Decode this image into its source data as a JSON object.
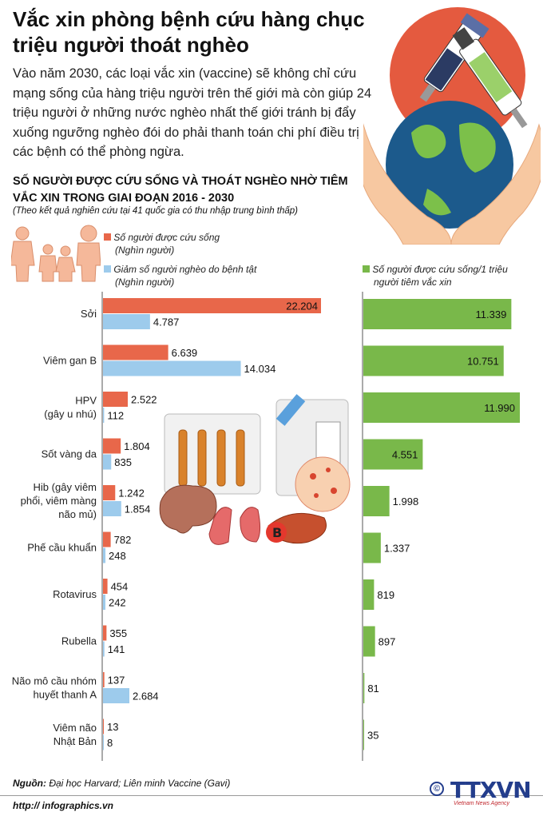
{
  "header": {
    "title": "Vắc xin phòng bệnh cứu hàng chục triệu người thoát nghèo",
    "intro": "Vào năm 2030, các loại vắc xin (vaccine) sẽ không chỉ cứu mạng sống của hàng triệu người trên thế giới mà còn giúp 24 triệu người ở những nước nghèo nhất thế giới tránh bị đẩy xuống ngưỡng nghèo đói do phải thanh toán chi phí điều trị các bệnh có thể phòng ngừa."
  },
  "colors": {
    "saved": "#e8674a",
    "poverty": "#9dcbec",
    "per_million": "#79b84a",
    "dark_label_bg": "#ffffff"
  },
  "chart_data": {
    "type": "bar",
    "title": "SỐ NGƯỜI ĐƯỢC CỨU SỐNG VÀ THOÁT NGHÈO NHỜ TIÊM VẮC XIN TRONG GIAI ĐOẠN 2016 - 2030",
    "subtitle": "(Theo kết quả nghiên cứu tại 41 quốc gia có thu nhập trung bình thấp)",
    "categories": [
      "Sởi",
      "Viêm gan B",
      "HPV (gây u nhú)",
      "Sốt vàng da",
      "Hib (gây viêm phổi, viêm màng não mủ)",
      "Phế cầu khuẩn",
      "Rotavirus",
      "Rubella",
      "Não mô cầu nhóm huyết thanh A",
      "Viêm não Nhật Bản"
    ],
    "category_lines": [
      [
        "Sởi"
      ],
      [
        "Viêm gan B"
      ],
      [
        "HPV",
        "(gây u nhú)"
      ],
      [
        "Sốt vàng da"
      ],
      [
        "Hib (gây viêm",
        "phổi, viêm màng",
        "não mủ)"
      ],
      [
        "Phế cầu khuẩn"
      ],
      [
        "Rotavirus"
      ],
      [
        "Rubella"
      ],
      [
        "Não mô cầu nhóm",
        "huyết thanh A"
      ],
      [
        "Viêm não",
        "Nhật Bản"
      ]
    ],
    "series": [
      {
        "name": "Số người được cứu sống",
        "unit": "(Nghìn người)",
        "values": [
          22204,
          6639,
          2522,
          1804,
          1242,
          782,
          454,
          355,
          137,
          13
        ],
        "labels": [
          "22.204",
          "6.639",
          "2.522",
          "1.804",
          "1.242",
          "782",
          "454",
          "355",
          "137",
          "13"
        ]
      },
      {
        "name": "Giảm số người nghèo do bệnh tật",
        "unit": "(Nghìn người)",
        "values": [
          4787,
          14034,
          112,
          835,
          1854,
          248,
          242,
          141,
          2684,
          8
        ],
        "labels": [
          "4.787",
          "14.034",
          "112",
          "835",
          "1.854",
          "248",
          "242",
          "141",
          "2.684",
          "8"
        ]
      },
      {
        "name": "Số người được cứu sống/1 triệu người tiêm vắc xin",
        "unit": "",
        "values": [
          11339,
          10751,
          11990,
          4551,
          1998,
          1337,
          819,
          897,
          81,
          35
        ],
        "labels": [
          "11.339",
          "10.751",
          "11.990",
          "4.551",
          "1.998",
          "1.337",
          "819",
          "897",
          "81",
          "35"
        ]
      }
    ]
  },
  "legend": {
    "saved": "Số người được cứu sống",
    "saved_unit": "(Nghìn người)",
    "poverty": "Giảm số người nghèo do bệnh tật",
    "poverty_unit": "(Nghìn người)",
    "per_million_1": "Số người được cứu sống/1 triệu",
    "per_million_2": "người tiêm vắc xin"
  },
  "footer": {
    "source_label": "Nguồn:",
    "source_text": "Đại học Harvard; Liên minh Vaccine (Gavi)",
    "url": "http:// infographics.vn",
    "logo_text": "TTXVN",
    "logo_sub": "Vietnam News Agency",
    "copyright": "©"
  },
  "icons": [
    "family-icon",
    "vaccine-globe-hands-icon",
    "ampoules-icon",
    "brain-icon",
    "lungs-icon",
    "liver-icon",
    "virus-cell-icon"
  ]
}
